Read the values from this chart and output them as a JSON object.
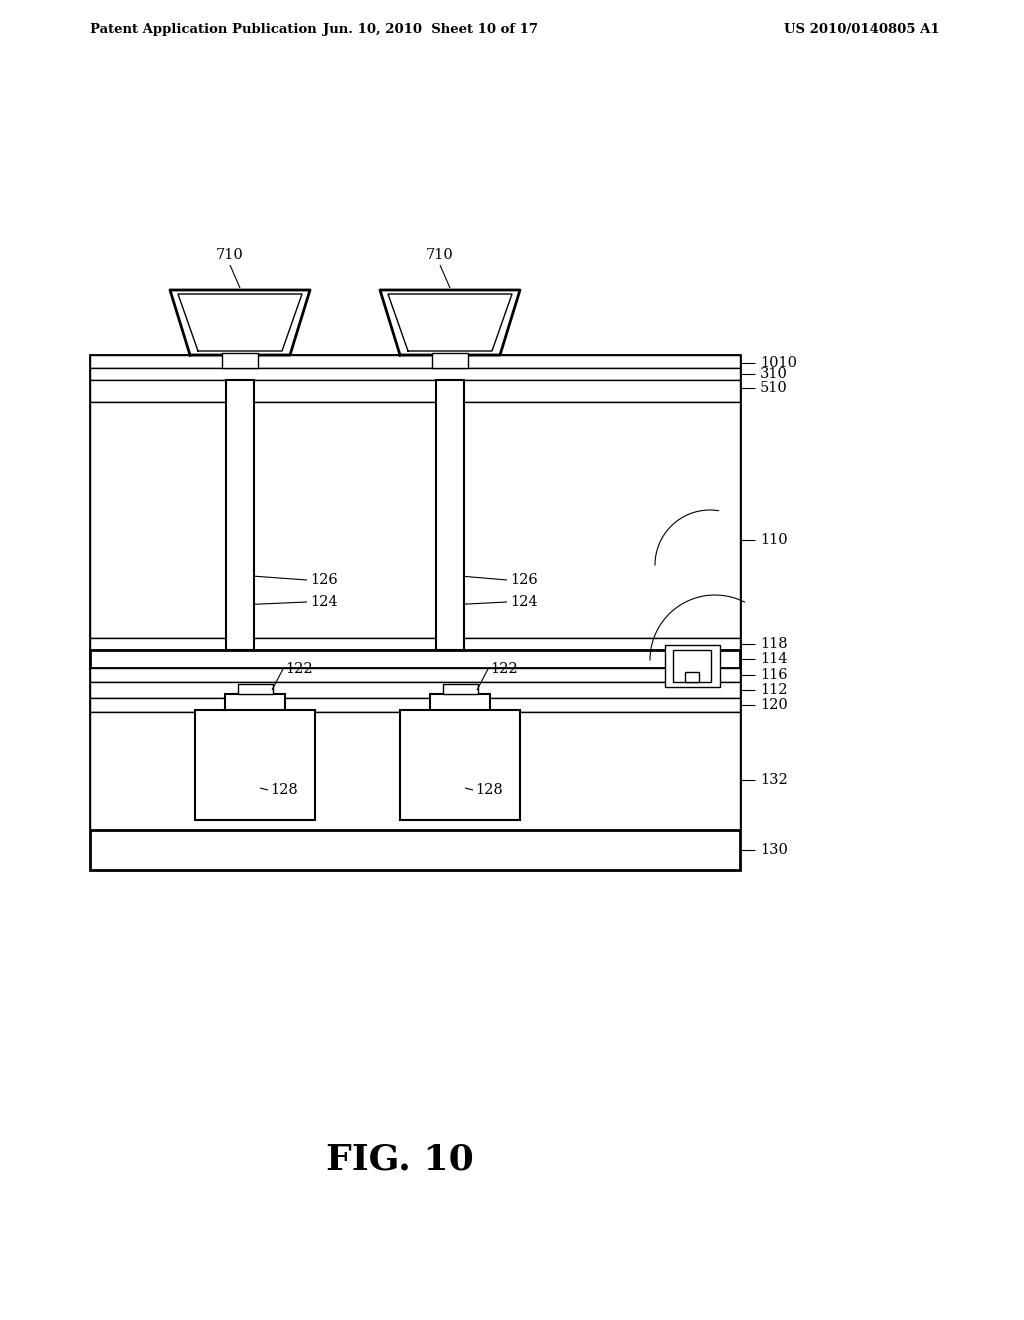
{
  "title": "FIG. 10",
  "header_left": "Patent Application Publication",
  "header_center": "Jun. 10, 2010  Sheet 10 of 17",
  "header_right": "US 2010/0140805 A1",
  "bg_color": "#ffffff",
  "line_color": "#000000"
}
